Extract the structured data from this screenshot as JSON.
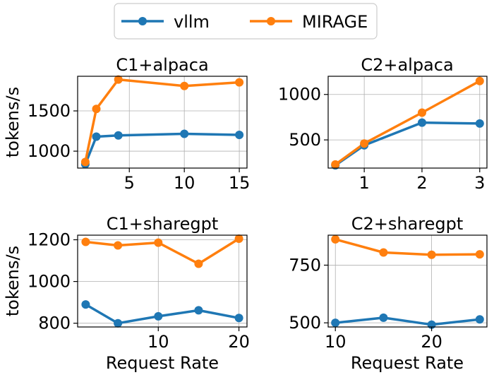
{
  "legend": {
    "entries": [
      {
        "name": "vllm",
        "color": "#1f77b4"
      },
      {
        "name": "MIRAGE",
        "color": "#ff7f0e"
      }
    ],
    "placement": "top-center"
  },
  "chart_data": [
    {
      "type": "line",
      "title": "C1+alpaca",
      "xlabel": "",
      "ylabel": "tokens/s",
      "xlim": [
        0.3,
        15.7
      ],
      "ylim": [
        790,
        1930
      ],
      "xticks": [
        5,
        10,
        15
      ],
      "yticks": [
        1000,
        1500
      ],
      "grid": true,
      "series": [
        {
          "name": "vllm",
          "color": "#1f77b4",
          "x": [
            1,
            2,
            4,
            10,
            15
          ],
          "y": [
            838,
            1180,
            1195,
            1215,
            1202
          ]
        },
        {
          "name": "MIRAGE",
          "color": "#ff7f0e",
          "x": [
            1,
            2,
            4,
            10,
            15
          ],
          "y": [
            865,
            1525,
            1890,
            1810,
            1855
          ]
        }
      ]
    },
    {
      "type": "line",
      "title": "C2+alpaca",
      "xlabel": "",
      "ylabel": "",
      "xlim": [
        0.375,
        3.125
      ],
      "ylim": [
        190,
        1200
      ],
      "xticks": [
        1,
        2,
        3
      ],
      "yticks": [
        500,
        1000
      ],
      "grid": true,
      "series": [
        {
          "name": "vllm",
          "color": "#1f77b4",
          "x": [
            0.5,
            1,
            2,
            3
          ],
          "y": [
            220,
            440,
            690,
            680
          ]
        },
        {
          "name": "MIRAGE",
          "color": "#ff7f0e",
          "x": [
            0.5,
            1,
            2,
            3
          ],
          "y": [
            230,
            460,
            800,
            1148
          ]
        }
      ]
    },
    {
      "type": "line",
      "title": "C1+sharegpt",
      "xlabel": "Request Rate",
      "ylabel": "tokens/s",
      "xlim": [
        0.0,
        21.0
      ],
      "ylim": [
        782,
        1222
      ],
      "xticks": [
        10,
        20
      ],
      "yticks": [
        800,
        1000,
        1200
      ],
      "grid": true,
      "series": [
        {
          "name": "vllm",
          "color": "#1f77b4",
          "x": [
            1,
            5,
            10,
            15,
            20
          ],
          "y": [
            890,
            800,
            833,
            862,
            825
          ]
        },
        {
          "name": "MIRAGE",
          "color": "#ff7f0e",
          "x": [
            1,
            5,
            10,
            15,
            20
          ],
          "y": [
            1190,
            1173,
            1186,
            1085,
            1205
          ]
        }
      ]
    },
    {
      "type": "line",
      "title": "C2+sharegpt",
      "xlabel": "Request Rate",
      "ylabel": "",
      "xlim": [
        9.25,
        25.75
      ],
      "ylim": [
        482,
        880
      ],
      "xticks": [
        10,
        20
      ],
      "yticks": [
        500,
        750
      ],
      "grid": true,
      "series": [
        {
          "name": "vllm",
          "color": "#1f77b4",
          "x": [
            10,
            15,
            20,
            25
          ],
          "y": [
            500,
            522,
            492,
            515
          ]
        },
        {
          "name": "MIRAGE",
          "color": "#ff7f0e",
          "x": [
            10,
            15,
            20,
            25
          ],
          "y": [
            862,
            805,
            795,
            797
          ]
        }
      ]
    }
  ]
}
